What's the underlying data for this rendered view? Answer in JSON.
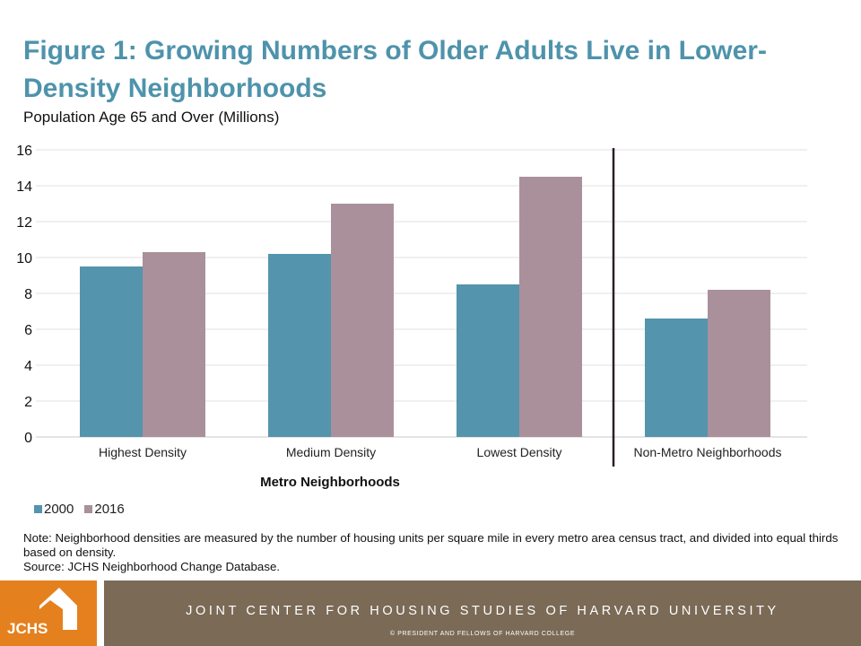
{
  "header": {
    "title": "Figure 1: Growing Numbers of Older Adults Live in Lower-Density Neighborhoods",
    "subtitle": "Population Age 65 and Over (Millions)"
  },
  "chart_data": {
    "type": "bar",
    "title": "Figure 1: Growing Numbers of Older Adults Live in Lower-Density Neighborhoods",
    "ylabel": "Population Age 65 and Over (Millions)",
    "xlabel": "Metro Neighborhoods",
    "categories": [
      "Highest Density",
      "Medium Density",
      "Lowest Density",
      "Non-Metro Neighborhoods"
    ],
    "series": [
      {
        "name": "2000",
        "color": "#5494ad",
        "values": [
          9.5,
          10.2,
          8.5,
          6.6
        ]
      },
      {
        "name": "2016",
        "color": "#a9909b",
        "values": [
          10.3,
          13.0,
          14.5,
          8.2
        ]
      }
    ],
    "ylim": [
      0,
      16
    ],
    "yticks": [
      "0",
      "2",
      "4",
      "6",
      "8",
      "10",
      "12",
      "14",
      "16"
    ],
    "grid": true,
    "legend_position": "bottom-left",
    "divider_after_category": 2
  },
  "notes": {
    "note": "Note: Neighborhood densities are measured by the number of housing units per square mile in every metro area census tract, and divided into equal thirds based on density.",
    "source": "Source: JCHS Neighborhood Change Database."
  },
  "footer": {
    "logo_text": "JCHS",
    "org_name": "JOINT CENTER FOR HOUSING STUDIES OF HARVARD UNIVERSITY",
    "copyright": "© PRESIDENT AND FELLOWS OF HARVARD COLLEGE",
    "logo_color": "#e5801f",
    "bar_color": "#7a6a56"
  }
}
